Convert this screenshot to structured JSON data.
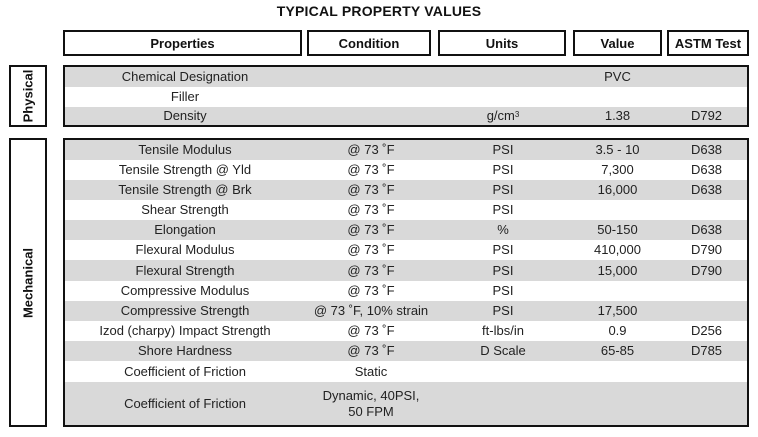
{
  "title": "TYPICAL PROPERTY VALUES",
  "headers": {
    "properties": "Properties",
    "condition": "Condition",
    "units": "Units",
    "value": "Value",
    "astm": "ASTM Test"
  },
  "physical": {
    "label": "Physical",
    "rows": [
      {
        "property": "Chemical Designation",
        "condition": "",
        "units": "",
        "value": "PVC",
        "astm": ""
      },
      {
        "property": "Filler",
        "condition": "",
        "units": "",
        "value": "",
        "astm": ""
      },
      {
        "property": "Density",
        "condition": "",
        "units": "g/cm",
        "units_sup": "3",
        "value": "1.38",
        "astm": "D792"
      }
    ]
  },
  "mechanical": {
    "label": "Mechanical",
    "rows": [
      {
        "property": "Tensile Modulus",
        "condition": "@ 73 ˚F",
        "units": "PSI",
        "value": "3.5 - 10",
        "astm": "D638"
      },
      {
        "property": "Tensile Strength @ Yld",
        "condition": "@ 73 ˚F",
        "units": "PSI",
        "value": "7,300",
        "astm": "D638"
      },
      {
        "property": "Tensile Strength @ Brk",
        "condition": "@ 73 ˚F",
        "units": "PSI",
        "value": "16,000",
        "astm": "D638"
      },
      {
        "property": "Shear Strength",
        "condition": "@ 73 ˚F",
        "units": "PSI",
        "value": "",
        "astm": ""
      },
      {
        "property": "Elongation",
        "condition": "@ 73 ˚F",
        "units": "%",
        "value": "50-150",
        "astm": "D638"
      },
      {
        "property": "Flexural Modulus",
        "condition": "@ 73 ˚F",
        "units": "PSI",
        "value": "410,000",
        "astm": "D790"
      },
      {
        "property": "Flexural Strength",
        "condition": "@ 73 ˚F",
        "units": "PSI",
        "value": "15,000",
        "astm": "D790"
      },
      {
        "property": "Compressive Modulus",
        "condition": "@ 73 ˚F",
        "units": "PSI",
        "value": "",
        "astm": ""
      },
      {
        "property": "Compressive Strength",
        "condition": "@ 73 ˚F, 10% strain",
        "units": "PSI",
        "value": "17,500",
        "astm": ""
      },
      {
        "property": "Izod (charpy) Impact Strength",
        "condition": "@ 73 ˚F",
        "units": "ft-lbs/in",
        "value": "0.9",
        "astm": "D256"
      },
      {
        "property": "Shore Hardness",
        "condition": "@ 73 ˚F",
        "units": "D Scale",
        "value": "65-85",
        "astm": "D785"
      },
      {
        "property": "Coefficient of Friction",
        "condition": "Static",
        "units": "",
        "value": "",
        "astm": ""
      },
      {
        "property": "Coefficient of Friction",
        "condition": "Dynamic, 40PSI,\n50 FPM",
        "units": "",
        "value": "",
        "astm": ""
      }
    ]
  }
}
